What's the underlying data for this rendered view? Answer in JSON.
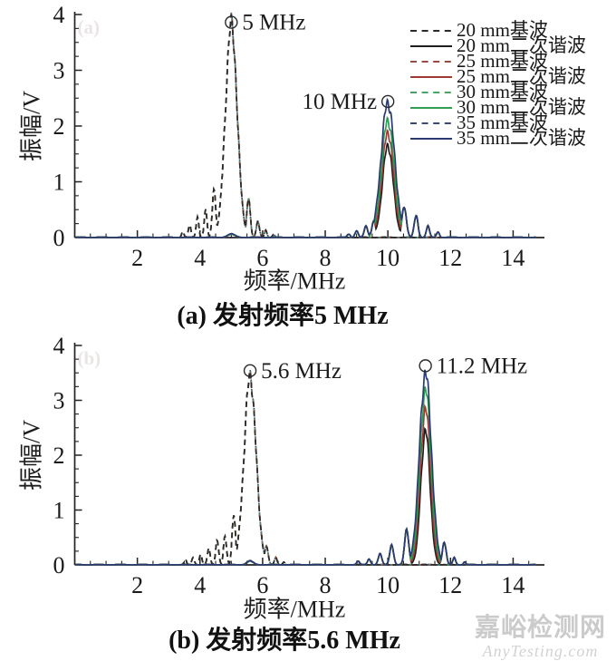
{
  "watermark": {
    "line1": "嘉峪检测网",
    "line2": "AnyTesting.com"
  },
  "legend": {
    "entries": [
      {
        "label": "20 mm基波",
        "color": "#2a2a2a",
        "dash": true
      },
      {
        "label": "20 mm二次谐波",
        "color": "#1f1f1f",
        "dash": false
      },
      {
        "label": "25 mm基波",
        "color": "#9a4a42",
        "dash": true
      },
      {
        "label": "25 mm二次谐波",
        "color": "#9e3a34",
        "dash": false
      },
      {
        "label": "30 mm基波",
        "color": "#46a564",
        "dash": true
      },
      {
        "label": "30 mm二次谐波",
        "color": "#2f9e52",
        "dash": false
      },
      {
        "label": "35 mm基波",
        "color": "#3a4a77",
        "dash": true
      },
      {
        "label": "35 mm二次谐波",
        "color": "#2b3b72",
        "dash": false
      }
    ]
  },
  "chart_data": [
    {
      "id": "a",
      "type": "line",
      "caption": "(a) 发射频率5 MHz",
      "ghost": "(a)",
      "xlabel": "频率/MHz",
      "ylabel": "振幅/V",
      "xlim": [
        0,
        15
      ],
      "ylim": [
        0,
        4
      ],
      "xticks": [
        2,
        4,
        6,
        8,
        10,
        12,
        14
      ],
      "yticks": [
        0,
        1,
        2,
        3,
        4
      ],
      "annotations": [
        {
          "text": "5 MHz",
          "x": 5.0,
          "y": 3.86,
          "text_side": "right"
        },
        {
          "text": "10 MHz",
          "x": 10.0,
          "y": 2.44,
          "text_side": "left"
        }
      ],
      "fundamental_sidelobes": [
        [
          4.45,
          0.85,
          0.055
        ],
        [
          4.18,
          0.48,
          0.045
        ],
        [
          3.92,
          0.36,
          0.042
        ],
        [
          3.67,
          0.22,
          0.04
        ],
        [
          3.45,
          0.11,
          0.035
        ],
        [
          5.55,
          0.7,
          0.055
        ],
        [
          5.85,
          0.28,
          0.05
        ],
        [
          6.1,
          0.13,
          0.04
        ],
        [
          6.35,
          0.05,
          0.035
        ]
      ],
      "harmonic_sidelobes": [
        [
          8.75,
          0.06,
          0.045
        ],
        [
          9.0,
          0.12,
          0.05
        ],
        [
          9.3,
          0.2,
          0.055
        ],
        [
          9.55,
          0.3,
          0.06
        ],
        [
          10.52,
          0.55,
          0.07
        ],
        [
          10.9,
          0.4,
          0.06
        ],
        [
          11.28,
          0.2,
          0.05
        ],
        [
          11.6,
          0.1,
          0.045
        ]
      ],
      "series": [
        {
          "name": "20 mm基波",
          "type": "fundamental",
          "color": "#2a2a2a",
          "dash": true,
          "peak": [
            5.0,
            3.82,
            0.185
          ]
        },
        {
          "name": "25 mm基波",
          "type": "fundamental",
          "color": "#9a4a42",
          "dash": true,
          "peak": [
            5.0,
            3.83,
            0.185
          ]
        },
        {
          "name": "30 mm基波",
          "type": "fundamental",
          "color": "#46a564",
          "dash": true,
          "peak": [
            5.0,
            3.84,
            0.185
          ]
        },
        {
          "name": "35 mm基波",
          "type": "fundamental",
          "color": "#3a4a77",
          "dash": true,
          "peak": [
            5.0,
            3.85,
            0.185
          ]
        },
        {
          "name": "20 mm二次谐波",
          "type": "harmonic",
          "color": "#1f1f1f",
          "dash": false,
          "peak": [
            10.0,
            1.65,
            0.17
          ],
          "bump": [
            5.0,
            0.06,
            0.12
          ]
        },
        {
          "name": "25 mm二次谐波",
          "type": "harmonic",
          "color": "#9e3a34",
          "dash": false,
          "peak": [
            10.0,
            1.88,
            0.185
          ],
          "bump": [
            5.0,
            0.05,
            0.12
          ]
        },
        {
          "name": "30 mm二次谐波",
          "type": "harmonic",
          "color": "#2f9e52",
          "dash": false,
          "peak": [
            10.0,
            2.1,
            0.2
          ],
          "bump": [
            5.0,
            0.05,
            0.12
          ]
        },
        {
          "name": "35 mm二次谐波",
          "type": "harmonic",
          "color": "#2b3b72",
          "dash": false,
          "peak": [
            10.0,
            2.42,
            0.215
          ],
          "bump": [
            5.0,
            0.06,
            0.12
          ]
        }
      ]
    },
    {
      "id": "b",
      "type": "line",
      "caption": "(b) 发射频率5.6 MHz",
      "ghost": "(b)",
      "xlabel": "频率/MHz",
      "ylabel": "振幅/V",
      "xlim": [
        0,
        15
      ],
      "ylim": [
        0,
        4
      ],
      "xticks": [
        2,
        4,
        6,
        8,
        10,
        12,
        14
      ],
      "yticks": [
        0,
        1,
        2,
        3,
        4
      ],
      "annotations": [
        {
          "text": "5.6 MHz",
          "x": 5.6,
          "y": 3.54,
          "text_side": "right"
        },
        {
          "text": "11.2 MHz",
          "x": 11.2,
          "y": 3.63,
          "text_side": "right"
        }
      ],
      "fundamental_sidelobes": [
        [
          5.08,
          0.93,
          0.052
        ],
        [
          4.8,
          0.52,
          0.048
        ],
        [
          4.55,
          0.45,
          0.048
        ],
        [
          4.28,
          0.3,
          0.045
        ],
        [
          4.02,
          0.2,
          0.04
        ],
        [
          3.78,
          0.14,
          0.04
        ],
        [
          3.53,
          0.1,
          0.035
        ],
        [
          6.12,
          0.35,
          0.055
        ],
        [
          6.42,
          0.13,
          0.04
        ],
        [
          6.68,
          0.05,
          0.035
        ]
      ],
      "harmonic_sidelobes": [
        [
          9.05,
          0.06,
          0.045
        ],
        [
          9.4,
          0.1,
          0.05
        ],
        [
          9.75,
          0.2,
          0.055
        ],
        [
          10.12,
          0.36,
          0.06
        ],
        [
          10.6,
          0.65,
          0.065
        ],
        [
          11.8,
          0.4,
          0.06
        ],
        [
          12.12,
          0.13,
          0.045
        ],
        [
          12.45,
          0.05,
          0.035
        ]
      ],
      "series": [
        {
          "name": "20 mm基波",
          "type": "fundamental",
          "color": "#2a2a2a",
          "dash": true,
          "peak": [
            5.6,
            3.42,
            0.19
          ]
        },
        {
          "name": "25 mm基波",
          "type": "fundamental",
          "color": "#9a4a42",
          "dash": true,
          "peak": [
            5.6,
            3.43,
            0.19
          ]
        },
        {
          "name": "30 mm基波",
          "type": "fundamental",
          "color": "#46a564",
          "dash": true,
          "peak": [
            5.6,
            3.44,
            0.19
          ]
        },
        {
          "name": "35 mm基波",
          "type": "fundamental",
          "color": "#3a4a77",
          "dash": true,
          "peak": [
            5.6,
            3.45,
            0.19
          ]
        },
        {
          "name": "20 mm二次谐波",
          "type": "harmonic",
          "color": "#1f1f1f",
          "dash": false,
          "peak": [
            11.2,
            2.45,
            0.145
          ],
          "bump": [
            5.6,
            0.07,
            0.1
          ]
        },
        {
          "name": "25 mm二次谐波",
          "type": "harmonic",
          "color": "#9e3a34",
          "dash": false,
          "peak": [
            11.2,
            2.85,
            0.16
          ],
          "bump": [
            5.6,
            0.06,
            0.1
          ]
        },
        {
          "name": "30 mm二次谐波",
          "type": "harmonic",
          "color": "#2f9e52",
          "dash": false,
          "peak": [
            11.2,
            3.2,
            0.175
          ],
          "bump": [
            5.6,
            0.06,
            0.1
          ]
        },
        {
          "name": "35 mm二次谐波",
          "type": "harmonic",
          "color": "#2b3b72",
          "dash": false,
          "peak": [
            11.2,
            3.5,
            0.19
          ],
          "bump": [
            5.6,
            0.07,
            0.1
          ]
        }
      ]
    }
  ]
}
